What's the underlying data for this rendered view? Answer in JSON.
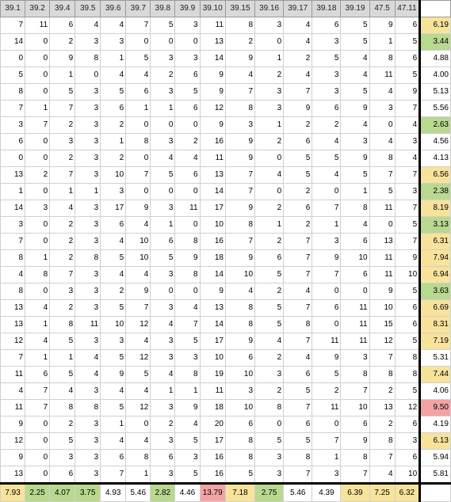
{
  "headers": [
    "39.1",
    "39.2",
    "39.4",
    "39.5",
    "39.6",
    "39.7",
    "39.8",
    "39.9",
    "39.10",
    "39.15",
    "39.16",
    "39.17",
    "39.18",
    "39.19",
    "47.5",
    "47.11"
  ],
  "rows": [
    {
      "values": [
        7,
        11,
        6,
        4,
        4,
        7,
        5,
        3,
        11,
        8,
        3,
        4,
        6,
        5,
        9,
        6
      ],
      "avg": "6.19",
      "color": "#f8e39b"
    },
    {
      "values": [
        14,
        0,
        2,
        3,
        3,
        0,
        0,
        0,
        13,
        2,
        0,
        4,
        3,
        5,
        1,
        5
      ],
      "avg": "3.44",
      "color": "#b9d98f"
    },
    {
      "values": [
        0,
        0,
        9,
        8,
        1,
        5,
        3,
        3,
        14,
        9,
        1,
        2,
        5,
        4,
        8,
        6
      ],
      "avg": "4.88",
      "color": "#ffffff"
    },
    {
      "values": [
        5,
        0,
        1,
        0,
        4,
        4,
        2,
        6,
        9,
        4,
        2,
        4,
        3,
        4,
        11,
        5
      ],
      "avg": "4.00",
      "color": "#ffffff"
    },
    {
      "values": [
        8,
        0,
        5,
        3,
        5,
        6,
        3,
        5,
        9,
        7,
        3,
        7,
        3,
        5,
        4,
        9
      ],
      "avg": "5.13",
      "color": "#ffffff"
    },
    {
      "values": [
        7,
        1,
        7,
        3,
        6,
        1,
        1,
        6,
        12,
        8,
        3,
        9,
        6,
        9,
        3,
        7
      ],
      "avg": "5.56",
      "color": "#ffffff"
    },
    {
      "values": [
        3,
        7,
        2,
        3,
        2,
        0,
        0,
        0,
        9,
        3,
        1,
        2,
        2,
        4,
        0,
        4
      ],
      "avg": "2.63",
      "color": "#b9d98f"
    },
    {
      "values": [
        6,
        0,
        3,
        3,
        1,
        8,
        3,
        2,
        16,
        9,
        2,
        6,
        4,
        3,
        4,
        3
      ],
      "avg": "4.56",
      "color": "#ffffff"
    },
    {
      "values": [
        0,
        0,
        2,
        3,
        2,
        0,
        4,
        4,
        11,
        9,
        0,
        5,
        5,
        9,
        8,
        4
      ],
      "avg": "4.13",
      "color": "#ffffff"
    },
    {
      "values": [
        13,
        2,
        7,
        3,
        10,
        7,
        5,
        6,
        13,
        7,
        4,
        5,
        4,
        5,
        7,
        7
      ],
      "avg": "6.56",
      "color": "#f8e39b"
    },
    {
      "values": [
        1,
        0,
        1,
        1,
        3,
        0,
        0,
        0,
        14,
        7,
        0,
        2,
        0,
        1,
        5,
        3
      ],
      "avg": "2.38",
      "color": "#b9d98f"
    },
    {
      "values": [
        14,
        3,
        4,
        3,
        17,
        9,
        3,
        11,
        17,
        9,
        2,
        6,
        7,
        8,
        11,
        7
      ],
      "avg": "8.19",
      "color": "#f8e39b"
    },
    {
      "values": [
        3,
        0,
        2,
        3,
        6,
        4,
        1,
        0,
        10,
        8,
        1,
        2,
        1,
        4,
        0,
        5
      ],
      "avg": "3.13",
      "color": "#b9d98f"
    },
    {
      "values": [
        7,
        0,
        2,
        3,
        4,
        10,
        6,
        8,
        16,
        7,
        2,
        7,
        3,
        6,
        13,
        7
      ],
      "avg": "6.31",
      "color": "#f8e39b"
    },
    {
      "values": [
        8,
        1,
        2,
        8,
        5,
        10,
        5,
        9,
        18,
        9,
        6,
        7,
        9,
        10,
        11,
        9
      ],
      "avg": "7.94",
      "color": "#f8e39b"
    },
    {
      "values": [
        4,
        8,
        7,
        3,
        4,
        4,
        3,
        8,
        14,
        10,
        5,
        7,
        7,
        6,
        11,
        10
      ],
      "avg": "6.94",
      "color": "#f8e39b"
    },
    {
      "values": [
        8,
        0,
        3,
        3,
        2,
        9,
        0,
        0,
        9,
        4,
        2,
        4,
        0,
        0,
        9,
        5
      ],
      "avg": "3.63",
      "color": "#b9d98f"
    },
    {
      "values": [
        13,
        4,
        2,
        3,
        5,
        7,
        3,
        4,
        13,
        8,
        5,
        7,
        6,
        11,
        10,
        6
      ],
      "avg": "6.69",
      "color": "#f8e39b"
    },
    {
      "values": [
        13,
        1,
        8,
        11,
        10,
        12,
        4,
        7,
        14,
        8,
        5,
        8,
        0,
        11,
        15,
        6
      ],
      "avg": "8.31",
      "color": "#f8e39b"
    },
    {
      "values": [
        12,
        4,
        5,
        3,
        3,
        4,
        3,
        5,
        17,
        9,
        4,
        7,
        11,
        11,
        12,
        5
      ],
      "avg": "7.19",
      "color": "#f8e39b"
    },
    {
      "values": [
        7,
        1,
        1,
        4,
        5,
        12,
        3,
        3,
        10,
        6,
        2,
        4,
        9,
        3,
        7,
        8
      ],
      "avg": "5.31",
      "color": "#ffffff"
    },
    {
      "values": [
        11,
        6,
        5,
        4,
        9,
        5,
        4,
        8,
        19,
        10,
        3,
        6,
        5,
        8,
        8,
        8
      ],
      "avg": "7.44",
      "color": "#f8e39b"
    },
    {
      "values": [
        4,
        7,
        4,
        3,
        4,
        4,
        1,
        1,
        11,
        3,
        2,
        5,
        2,
        7,
        2,
        5
      ],
      "avg": "4.06",
      "color": "#ffffff"
    },
    {
      "values": [
        11,
        7,
        8,
        8,
        5,
        12,
        3,
        9,
        18,
        10,
        8,
        7,
        11,
        10,
        13,
        12
      ],
      "avg": "9.50",
      "color": "#f4a3a3"
    },
    {
      "values": [
        9,
        0,
        2,
        3,
        1,
        0,
        2,
        4,
        20,
        6,
        0,
        6,
        0,
        6,
        2,
        6
      ],
      "avg": "4.19",
      "color": "#ffffff"
    },
    {
      "values": [
        12,
        0,
        5,
        3,
        4,
        4,
        3,
        5,
        17,
        8,
        5,
        5,
        7,
        9,
        8,
        3
      ],
      "avg": "6.13",
      "color": "#f8e39b"
    },
    {
      "values": [
        9,
        0,
        3,
        3,
        6,
        8,
        6,
        3,
        16,
        8,
        3,
        8,
        1,
        8,
        7,
        6
      ],
      "avg": "5.94",
      "color": "#ffffff"
    },
    {
      "values": [
        13,
        0,
        6,
        3,
        7,
        1,
        3,
        5,
        16,
        5,
        3,
        7,
        3,
        7,
        4,
        10
      ],
      "avg": "5.81",
      "color": "#ffffff"
    }
  ],
  "footer": [
    {
      "value": "7.93",
      "color": "#f8e39b"
    },
    {
      "value": "2.25",
      "color": "#b9d98f"
    },
    {
      "value": "4.07",
      "color": "#b9d98f"
    },
    {
      "value": "3.75",
      "color": "#b9d98f"
    },
    {
      "value": "4.93",
      "color": "#ffffff"
    },
    {
      "value": "5.46",
      "color": "#ffffff"
    },
    {
      "value": "2.82",
      "color": "#b9d98f"
    },
    {
      "value": "4.46",
      "color": "#ffffff"
    },
    {
      "value": "13.79",
      "color": "#f4a3a3"
    },
    {
      "value": "7.18",
      "color": "#f8e39b"
    },
    {
      "value": "2.75",
      "color": "#b9d98f"
    },
    {
      "value": "5.46",
      "color": "#ffffff"
    },
    {
      "value": "4.39",
      "color": "#ffffff"
    },
    {
      "value": "6.39",
      "color": "#f8e39b"
    },
    {
      "value": "7.25",
      "color": "#f8e39b"
    },
    {
      "value": "6.32",
      "color": "#f8e39b"
    }
  ]
}
